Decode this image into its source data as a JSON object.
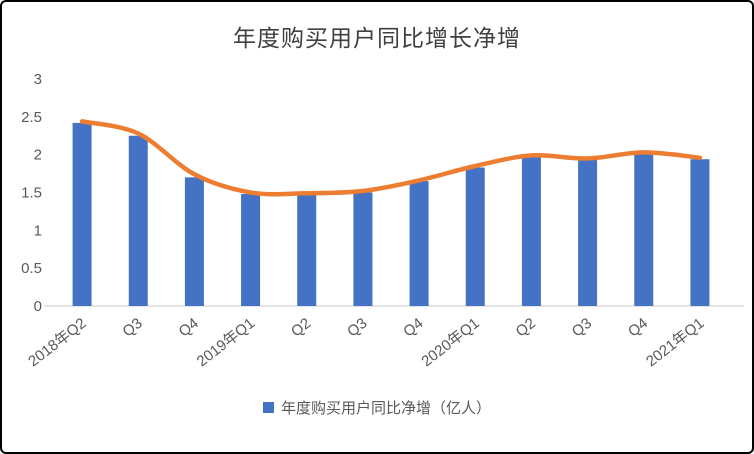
{
  "chart_data": {
    "type": "bar",
    "title": "年度购买用户同比增长净增",
    "categories": [
      "2018年Q2",
      "Q3",
      "Q4",
      "2019年Q1",
      "Q2",
      "Q3",
      "Q4",
      "2020年Q1",
      "Q2",
      "Q3",
      "Q4",
      "2021年Q1"
    ],
    "series": [
      {
        "name": "年度购买用户同比净增（亿人）",
        "kind": "bar",
        "color": "#4472C4",
        "values": [
          2.42,
          2.25,
          1.7,
          1.48,
          1.48,
          1.5,
          1.65,
          1.83,
          1.97,
          1.93,
          2.01,
          1.94
        ]
      },
      {
        "name": "",
        "kind": "line",
        "color": "#ED7D31",
        "values": [
          2.44,
          2.28,
          1.74,
          1.5,
          1.49,
          1.52,
          1.66,
          1.85,
          1.99,
          1.95,
          2.03,
          1.96
        ]
      }
    ],
    "legend": "年度购买用户同比净增（亿人）",
    "legend_position": "bottom",
    "ylim": [
      0,
      3
    ],
    "yticks": [
      0,
      0.5,
      1,
      1.5,
      2,
      2.5,
      3
    ],
    "grid": false,
    "colors": {
      "bar": "#4472C4",
      "line": "#ED7D31",
      "axis_text": "#595959",
      "title_text": "#404040",
      "axis_line": "#C9C9C9",
      "frame_border": "#000000"
    }
  }
}
